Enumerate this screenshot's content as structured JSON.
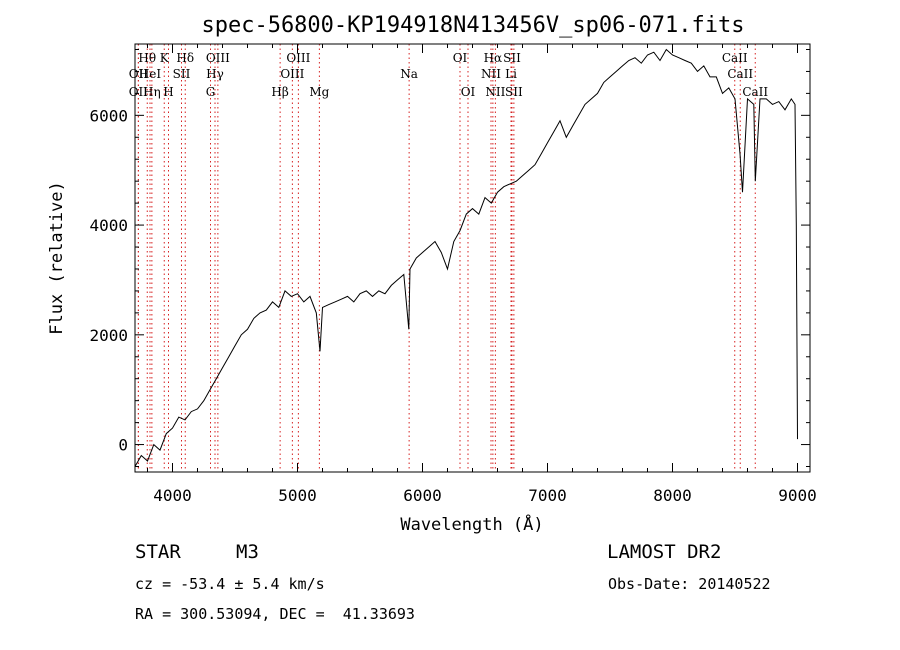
{
  "chart_data": {
    "type": "line",
    "title": "spec-56800-KP194918N413456V_sp06-071.fits",
    "xlabel": "Wavelength (Å)",
    "ylabel": "Flux (relative)",
    "xlim": [
      3700,
      9100
    ],
    "ylim": [
      -500,
      7300
    ],
    "x_ticks": [
      4000,
      5000,
      6000,
      7000,
      8000,
      9000
    ],
    "y_ticks": [
      0,
      2000,
      4000,
      6000
    ],
    "x_tick_labels": [
      "4000",
      "5000",
      "6000",
      "7000",
      "8000",
      "9000"
    ],
    "y_tick_labels": [
      "0",
      "2000",
      "4000",
      "6000"
    ],
    "series": [
      {
        "x": [
          3700,
          3750,
          3800,
          3850,
          3900,
          3950,
          4000,
          4050,
          4100,
          4150,
          4200,
          4250,
          4300,
          4350,
          4400,
          4450,
          4500,
          4550,
          4600,
          4650,
          4700,
          4750,
          4800,
          4850,
          4900,
          4950,
          5000,
          5050,
          5100,
          5150,
          5180,
          5200,
          5250,
          5300,
          5350,
          5400,
          5450,
          5500,
          5550,
          5600,
          5650,
          5700,
          5750,
          5800,
          5850,
          5890,
          5900,
          5950,
          6000,
          6050,
          6100,
          6150,
          6200,
          6250,
          6300,
          6350,
          6400,
          6450,
          6500,
          6550,
          6600,
          6650,
          6700,
          6750,
          6800,
          6850,
          6900,
          6950,
          7000,
          7050,
          7100,
          7150,
          7200,
          7250,
          7300,
          7350,
          7400,
          7450,
          7500,
          7550,
          7600,
          7650,
          7700,
          7750,
          7800,
          7850,
          7900,
          7950,
          8000,
          8050,
          8100,
          8150,
          8200,
          8250,
          8300,
          8350,
          8400,
          8450,
          8500,
          8540,
          8560,
          8600,
          8650,
          8662,
          8700,
          8750,
          8800,
          8850,
          8900,
          8950,
          8980,
          8990,
          9000
        ],
        "y": [
          -400,
          -200,
          -300,
          0,
          -100,
          200,
          300,
          500,
          450,
          600,
          650,
          800,
          1000,
          1200,
          1400,
          1600,
          1800,
          2000,
          2100,
          2300,
          2400,
          2450,
          2600,
          2500,
          2800,
          2700,
          2750,
          2600,
          2700,
          2400,
          1700,
          2500,
          2550,
          2600,
          2650,
          2700,
          2600,
          2750,
          2800,
          2700,
          2800,
          2750,
          2900,
          3000,
          3100,
          2100,
          3200,
          3400,
          3500,
          3600,
          3700,
          3500,
          3200,
          3700,
          3900,
          4200,
          4300,
          4200,
          4500,
          4400,
          4600,
          4700,
          4750,
          4800,
          4900,
          5000,
          5100,
          5300,
          5500,
          5700,
          5900,
          5600,
          5800,
          6000,
          6200,
          6300,
          6400,
          6600,
          6700,
          6800,
          6900,
          7000,
          7050,
          6950,
          7100,
          7150,
          7000,
          7200,
          7100,
          7050,
          7000,
          6950,
          6800,
          6900,
          6700,
          6700,
          6400,
          6500,
          6300,
          5300,
          4600,
          6300,
          6200,
          4800,
          6300,
          6300,
          6200,
          6250,
          6100,
          6300,
          6200,
          4000,
          100
        ]
      }
    ],
    "spectral_lines": [
      {
        "label": "Hθ",
        "wave": 3798,
        "row": 1
      },
      {
        "label": "OII",
        "wave": 3727,
        "row": 2
      },
      {
        "label": "OII",
        "wave": 3727,
        "row": 3
      },
      {
        "label": "HeI",
        "wave": 3820,
        "row": 2
      },
      {
        "label": "Hη",
        "wave": 3835,
        "row": 3
      },
      {
        "label": "K",
        "wave": 3934,
        "row": 1
      },
      {
        "label": "SII",
        "wave": 4072,
        "row": 2
      },
      {
        "label": "H",
        "wave": 3968,
        "row": 3
      },
      {
        "label": "Hδ",
        "wave": 4102,
        "row": 1
      },
      {
        "label": "OIII",
        "wave": 4363,
        "row": 1
      },
      {
        "label": "Hγ",
        "wave": 4340,
        "row": 2
      },
      {
        "label": "G",
        "wave": 4304,
        "row": 3
      },
      {
        "label": "OIII",
        "wave": 5007,
        "row": 1
      },
      {
        "label": "OIII",
        "wave": 4959,
        "row": 2
      },
      {
        "label": "Hβ",
        "wave": 4861,
        "row": 3
      },
      {
        "label": "Mg",
        "wave": 5175,
        "row": 3
      },
      {
        "label": "Na",
        "wave": 5893,
        "row": 2
      },
      {
        "label": "OI",
        "wave": 6300,
        "row": 1
      },
      {
        "label": "OI",
        "wave": 6364,
        "row": 3
      },
      {
        "label": "Hα",
        "wave": 6563,
        "row": 1
      },
      {
        "label": "SII",
        "wave": 6716,
        "row": 1
      },
      {
        "label": "NII",
        "wave": 6548,
        "row": 2
      },
      {
        "label": "Li",
        "wave": 6708,
        "row": 2
      },
      {
        "label": "NII",
        "wave": 6583,
        "row": 3
      },
      {
        "label": "SII",
        "wave": 6731,
        "row": 3
      },
      {
        "label": "CaII",
        "wave": 8498,
        "row": 1
      },
      {
        "label": "CaII",
        "wave": 8542,
        "row": 2
      },
      {
        "label": "CaII",
        "wave": 8662,
        "row": 3
      }
    ],
    "line_marker_style": "red dotted vertical"
  },
  "info": {
    "object_type": "STAR",
    "subclass": "M3",
    "survey": "LAMOST DR2",
    "redshift": "cz = -53.4 ± 5.4 km/s",
    "obs_date": "Obs-Date: 20140522",
    "coordinates": "RA = 300.53094, DEC =  41.33693"
  }
}
